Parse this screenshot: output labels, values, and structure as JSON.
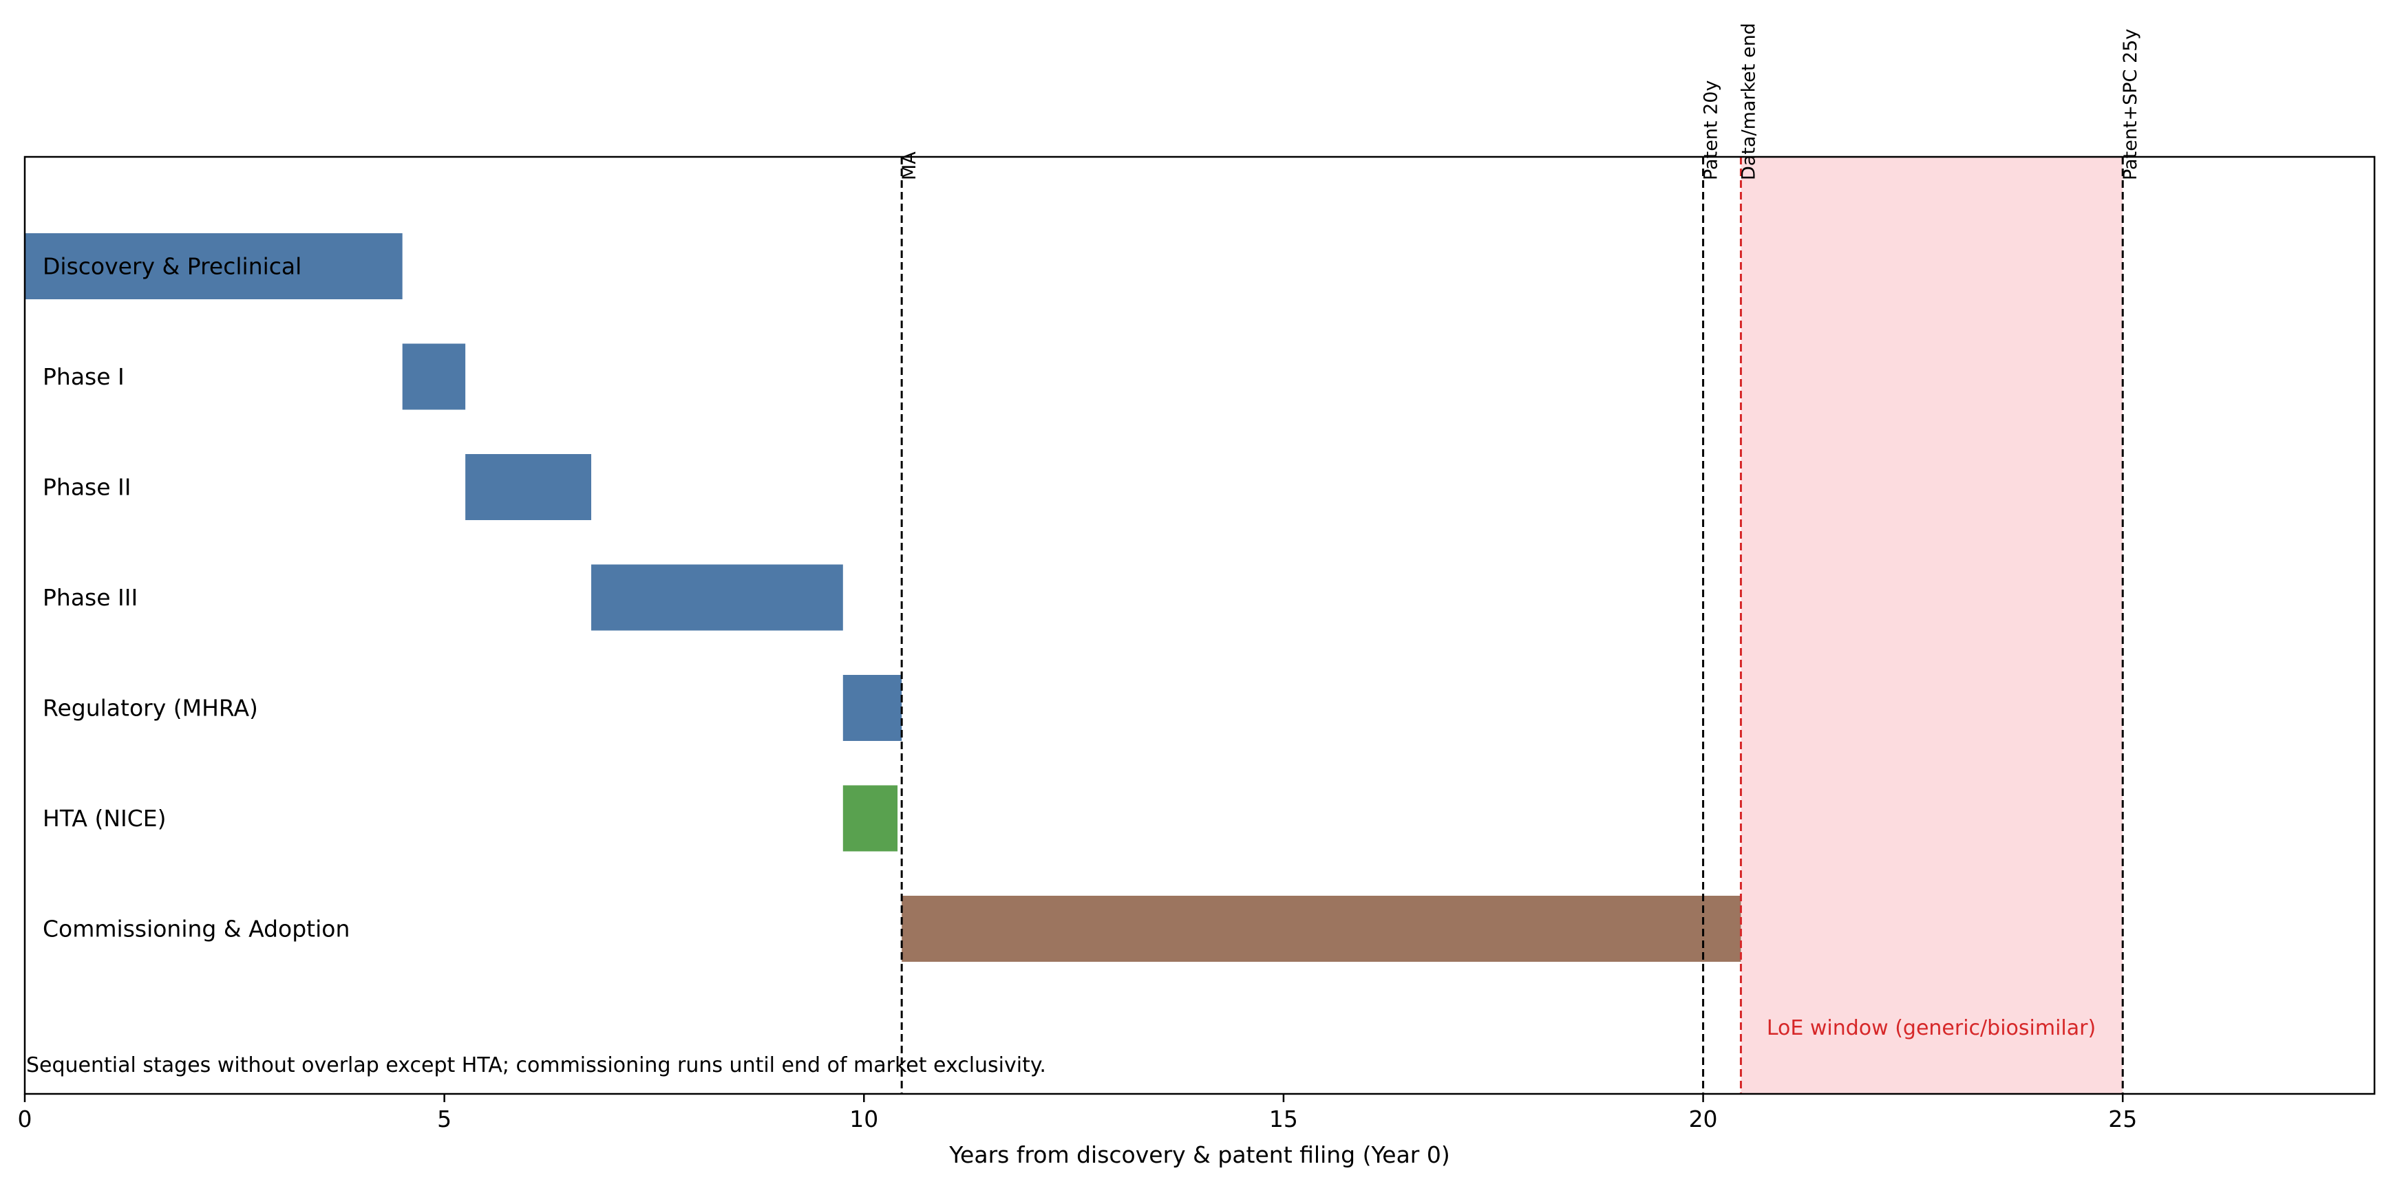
{
  "chart_data": {
    "type": "gantt",
    "xlabel": "Years from discovery & patent filing (Year 0)",
    "xlim": [
      0,
      28
    ],
    "x_ticks": [
      0,
      5,
      10,
      15,
      20,
      25
    ],
    "grid": false,
    "tasks": [
      {
        "label": "Discovery & Preclinical",
        "start": 0,
        "end": 4.5,
        "color": "#4e79a7"
      },
      {
        "label": "Phase I",
        "start": 4.5,
        "end": 5.25,
        "color": "#4e79a7"
      },
      {
        "label": "Phase II",
        "start": 5.25,
        "end": 6.75,
        "color": "#4e79a7"
      },
      {
        "label": "Phase III",
        "start": 6.75,
        "end": 9.75,
        "color": "#4e79a7"
      },
      {
        "label": "Regulatory (MHRA)",
        "start": 9.75,
        "end": 10.45,
        "color": "#4e79a7"
      },
      {
        "label": "HTA (NICE)",
        "start": 9.75,
        "end": 10.4,
        "color": "#59a14f"
      },
      {
        "label": "Commissioning & Adoption",
        "start": 10.45,
        "end": 20.45,
        "color": "#9c755f"
      }
    ],
    "markers": [
      {
        "label": "MA",
        "x": 10.45,
        "color": "#000000"
      },
      {
        "label": "Patent 20y",
        "x": 20,
        "color": "#000000"
      },
      {
        "label": "Data/market end",
        "x": 20.45,
        "color": "#d62728"
      },
      {
        "label": "Patent+SPC 25y",
        "x": 25,
        "color": "#000000"
      }
    ],
    "shaded_region": {
      "label": "LoE window (generic/biosimilar)",
      "start": 20.45,
      "end": 25,
      "color": "#fcdcdf",
      "label_color": "#d62728"
    },
    "footnote": "Sequential stages without overlap except HTA; commissioning runs until end of market exclusivity."
  }
}
